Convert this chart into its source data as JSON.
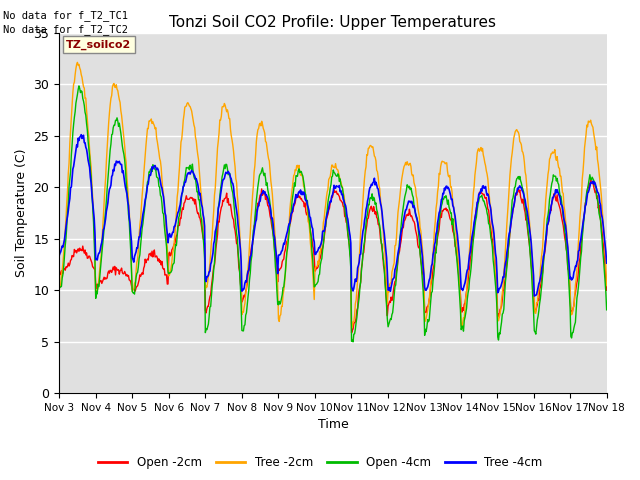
{
  "title": "Tonzi Soil CO2 Profile: Upper Temperatures",
  "ylabel": "Soil Temperature (C)",
  "xlabel": "Time",
  "top_left_text": "No data for f_T2_TC1\nNo data for f_T2_TC2",
  "legend_label_text": "TZ_soilco2",
  "ylim": [
    0,
    35
  ],
  "yticks": [
    0,
    5,
    10,
    15,
    20,
    25,
    30,
    35
  ],
  "xtick_labels": [
    "Nov 3",
    "Nov 4",
    "Nov 5",
    "Nov 6",
    "Nov 7",
    "Nov 8",
    "Nov 9",
    "Nov 10",
    "Nov 11",
    "Nov 12",
    "Nov 13",
    "Nov 14",
    "Nov 15",
    "Nov 16",
    "Nov 17",
    "Nov 18"
  ],
  "colors": {
    "open_2cm": "#FF0000",
    "tree_2cm": "#FFA500",
    "open_4cm": "#00BB00",
    "tree_4cm": "#0000FF"
  },
  "background_color": "#E0E0E0",
  "legend_entries": [
    "Open -2cm",
    "Tree -2cm",
    "Open -4cm",
    "Tree -4cm"
  ],
  "n_days": 15,
  "pts_per_day": 48,
  "peak_hour": 14,
  "tree_2cm_peaks": [
    32.0,
    30.0,
    26.5,
    28.0,
    28.0,
    26.2,
    22.0,
    22.0,
    24.0,
    22.5,
    22.5,
    23.7,
    25.5,
    23.5,
    26.3
  ],
  "tree_2cm_troughs": [
    10.5,
    9.5,
    9.8,
    11.5,
    10.0,
    7.5,
    7.0,
    12.0,
    6.5,
    10.0,
    7.0,
    6.5,
    7.0,
    8.0,
    7.5
  ],
  "open_4cm_peaks": [
    29.5,
    26.5,
    22.0,
    22.0,
    22.0,
    21.5,
    21.5,
    21.5,
    19.0,
    20.0,
    19.0,
    19.0,
    21.0,
    21.0,
    21.0
  ],
  "open_4cm_troughs": [
    10.0,
    9.5,
    9.8,
    11.5,
    6.0,
    6.0,
    8.5,
    10.5,
    5.0,
    6.5,
    6.0,
    6.2,
    5.5,
    6.0,
    5.5
  ],
  "tree_4cm_peaks": [
    25.0,
    22.5,
    22.0,
    21.5,
    21.5,
    19.5,
    19.5,
    20.0,
    20.5,
    18.5,
    20.0,
    20.0,
    20.0,
    19.5,
    20.5
  ],
  "tree_4cm_troughs": [
    13.5,
    13.0,
    13.0,
    15.0,
    11.0,
    10.0,
    13.5,
    13.5,
    10.0,
    10.0,
    10.0,
    10.0,
    9.8,
    9.5,
    11.0
  ],
  "open_2cm_peaks": [
    14.0,
    12.0,
    13.5,
    19.0,
    19.0,
    19.5,
    19.0,
    19.5,
    18.0,
    17.5,
    18.0,
    19.5,
    19.5,
    19.0,
    20.5
  ],
  "open_2cm_troughs": [
    11.5,
    10.5,
    10.0,
    13.5,
    8.0,
    9.0,
    12.0,
    12.0,
    6.0,
    8.5,
    8.0,
    8.0,
    7.5,
    8.0,
    8.0
  ]
}
